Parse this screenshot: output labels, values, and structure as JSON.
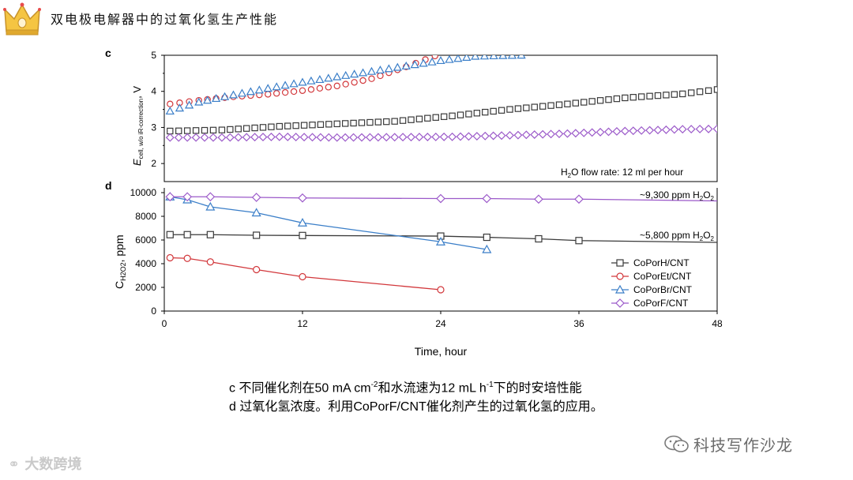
{
  "header": {
    "title": "双电极电解器中的过氧化氢生产性能"
  },
  "chart_data": [
    {
      "type": "scatter",
      "panel_label": "c",
      "ylabel": "E",
      "ylabel_sub": "cell, w/o iR-correction",
      "ylabel_unit": ", V",
      "ylim": [
        1.5,
        5
      ],
      "yticks": [
        "2",
        "3",
        "4",
        "5"
      ],
      "annotation": {
        "pre": "H",
        "sub": "2",
        "post": "O flow rate: 12 ml per hour"
      },
      "xlim": [
        0,
        48
      ],
      "series": [
        {
          "name": "CoPorH/CNT",
          "marker": "square",
          "color": "#3a3a3a",
          "x": [
            0.5,
            5,
            10,
            15,
            20,
            25,
            30,
            35,
            40,
            45,
            48
          ],
          "y": [
            2.9,
            2.93,
            3.03,
            3.1,
            3.17,
            3.32,
            3.5,
            3.65,
            3.82,
            3.93,
            4.05
          ]
        },
        {
          "name": "CoPorEt/CNT",
          "marker": "circle",
          "color": "#d2373b",
          "x": [
            0.5,
            3,
            6,
            9,
            12,
            15,
            18,
            21,
            23.5
          ],
          "y": [
            3.65,
            3.75,
            3.85,
            3.92,
            4.02,
            4.15,
            4.35,
            4.68,
            4.98
          ]
        },
        {
          "name": "CoPorBr/CNT",
          "marker": "triangle",
          "color": "#3a7ec8",
          "x": [
            0.5,
            3,
            6,
            9,
            12,
            15,
            18,
            21,
            24,
            27,
            31
          ],
          "y": [
            3.45,
            3.7,
            3.9,
            4.08,
            4.25,
            4.4,
            4.55,
            4.7,
            4.85,
            4.97,
            5.0
          ]
        },
        {
          "name": "CoPorF/CNT",
          "marker": "diamond",
          "color": "#9b59c9",
          "x": [
            0.5,
            5,
            10,
            15,
            20,
            25,
            30,
            35,
            40,
            45,
            48
          ],
          "y": [
            2.72,
            2.72,
            2.74,
            2.72,
            2.73,
            2.74,
            2.78,
            2.83,
            2.9,
            2.95,
            2.96
          ]
        }
      ]
    },
    {
      "type": "line",
      "panel_label": "d",
      "xlabel": "Time, hour",
      "ylabel": "C",
      "ylabel_sub": "H2O2",
      "ylabel_unit": ", ppm",
      "xlim": [
        0,
        48
      ],
      "ylim": [
        0,
        10000
      ],
      "xticks": [
        "0",
        "12",
        "24",
        "36",
        "48"
      ],
      "yticks": [
        "0",
        "2000",
        "4000",
        "6000",
        "8000",
        "10000"
      ],
      "annotations": [
        {
          "pre": "~9,300 ppm H",
          "sub": "2",
          "post": "O",
          "sub2": "2"
        },
        {
          "pre": "~5,800 ppm H",
          "sub": "2",
          "post": "O",
          "sub2": "2"
        }
      ],
      "legend_position": "bottom-right",
      "series": [
        {
          "name": "CoPorH/CNT",
          "marker": "square",
          "color": "#3a3a3a",
          "x": [
            0.5,
            2,
            4,
            8,
            12,
            24,
            28,
            32.5,
            36,
            48
          ],
          "y": [
            6450,
            6450,
            6450,
            6400,
            6380,
            6330,
            6230,
            6100,
            5950,
            5800
          ]
        },
        {
          "name": "CoPorEt/CNT",
          "marker": "circle",
          "color": "#d2373b",
          "x": [
            0.5,
            2,
            4,
            8,
            12,
            24
          ],
          "y": [
            4500,
            4450,
            4150,
            3500,
            2900,
            1800
          ]
        },
        {
          "name": "CoPorBr/CNT",
          "marker": "triangle",
          "color": "#3a7ec8",
          "x": [
            0.5,
            2,
            4,
            8,
            12,
            24,
            28
          ],
          "y": [
            9650,
            9400,
            8800,
            8300,
            7450,
            5850,
            5200
          ]
        },
        {
          "name": "CoPorF/CNT",
          "marker": "diamond",
          "color": "#9b59c9",
          "x": [
            0.5,
            2,
            4,
            8,
            12,
            24,
            28,
            32.5,
            36,
            48
          ],
          "y": [
            9650,
            9650,
            9650,
            9600,
            9550,
            9500,
            9500,
            9450,
            9450,
            9300
          ]
        }
      ]
    }
  ],
  "caption": {
    "line1_prefix": "c  不同催化剂在50 mA cm",
    "line1_sup1": "-2",
    "line1_mid": "和水流速为12 mL h",
    "line1_sup2": "-1",
    "line1_suffix": "下的时安培性能",
    "line2": "d  过氧化氢浓度。利用CoPorF/CNT催化剂产生的过氧化氢的应用。"
  },
  "wechat": {
    "label": "科技写作沙龙"
  },
  "watermark": {
    "label": "大数跨境"
  }
}
